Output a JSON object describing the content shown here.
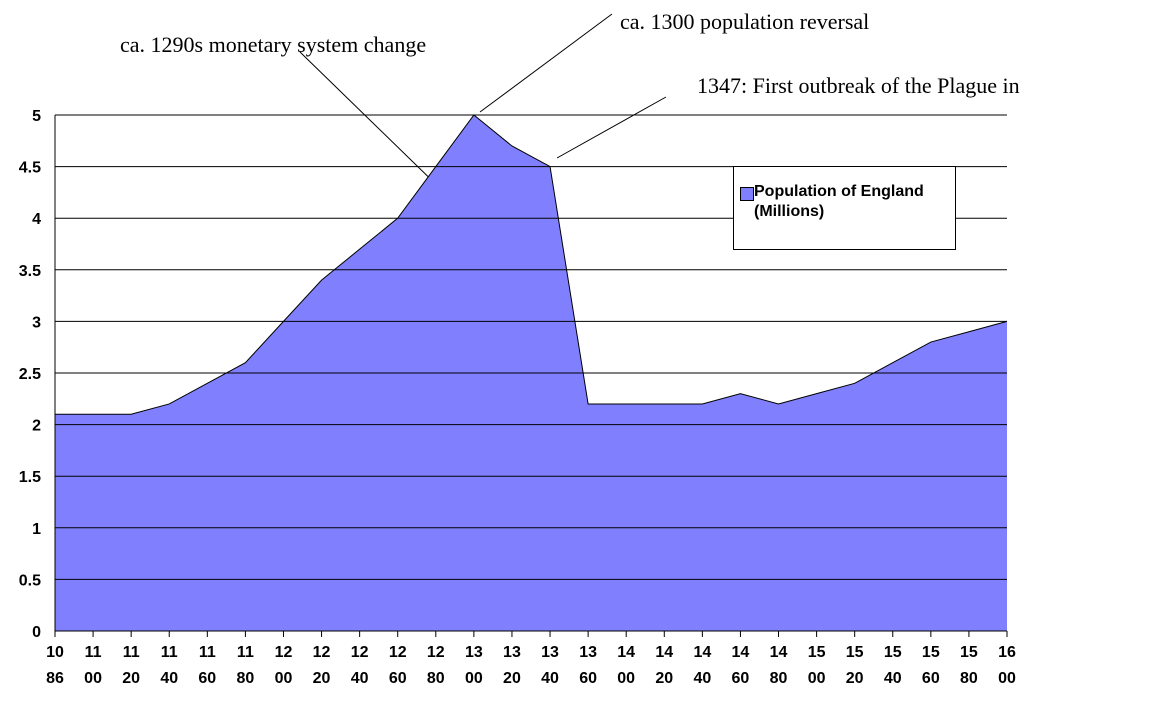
{
  "chart_data": {
    "type": "area",
    "categories": [
      "1086",
      "1100",
      "1120",
      "1140",
      "1160",
      "1180",
      "1200",
      "1220",
      "1240",
      "1260",
      "1280",
      "1300",
      "1320",
      "1340",
      "1360",
      "1400",
      "1420",
      "1440",
      "1460",
      "1480",
      "1500",
      "1520",
      "1540",
      "1560",
      "1580",
      "1600"
    ],
    "series": [
      {
        "name": "Population of England (Millions)",
        "color": "#8080ff",
        "values": [
          2.1,
          2.1,
          2.1,
          2.2,
          2.4,
          2.6,
          3.0,
          3.4,
          3.7,
          4.0,
          4.5,
          5.0,
          4.7,
          4.5,
          2.2,
          2.2,
          2.2,
          2.2,
          2.3,
          2.2,
          2.3,
          2.4,
          2.6,
          2.8,
          2.9,
          3.0
        ]
      }
    ],
    "ylim": [
      0,
      5
    ],
    "yticks": [
      0,
      0.5,
      1,
      1.5,
      2,
      2.5,
      3,
      3.5,
      4,
      4.5,
      5
    ],
    "grid": true,
    "annotations": [
      "ca. 1290s monetary system change",
      "ca. 1300 population reversal",
      "1347: First outbreak of the Plague in"
    ]
  }
}
